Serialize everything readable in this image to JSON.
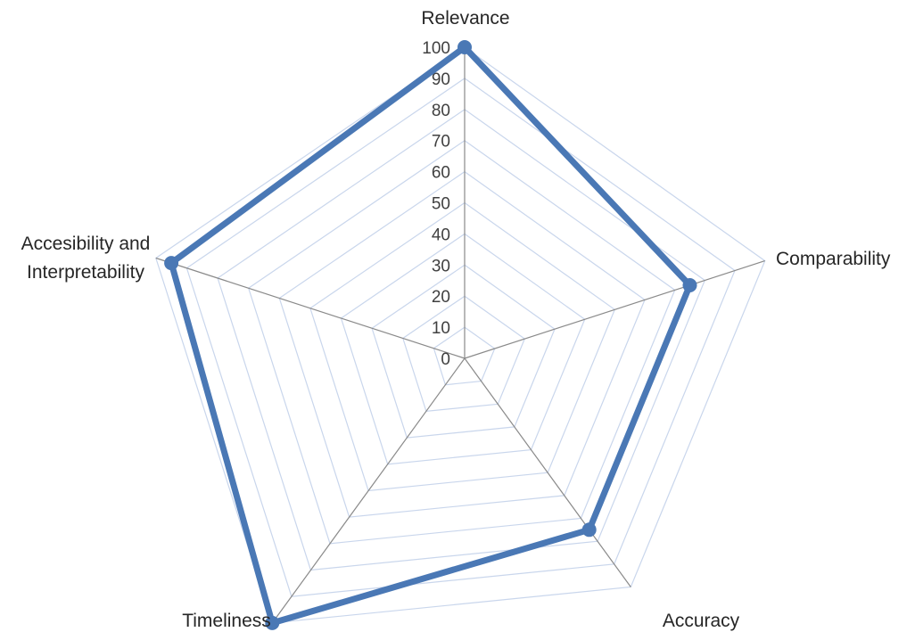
{
  "chart_data": {
    "type": "radar",
    "categories": [
      [
        "Relevance"
      ],
      [
        "Comparability"
      ],
      [
        "Accuracy"
      ],
      [
        "Timeliness"
      ],
      [
        "Accesibility and",
        "Interpretability"
      ]
    ],
    "series": [
      {
        "values": [
          100,
          75,
          75,
          100,
          95
        ],
        "color": "#4a78b5"
      }
    ],
    "rlim": [
      0,
      100
    ],
    "ticks": [
      0,
      10,
      20,
      30,
      40,
      50,
      60,
      70,
      80,
      90,
      100
    ],
    "grid": true,
    "legend": "none",
    "gridline_color": "#c9d6ec",
    "spoke_color": "#8a8a8a"
  }
}
